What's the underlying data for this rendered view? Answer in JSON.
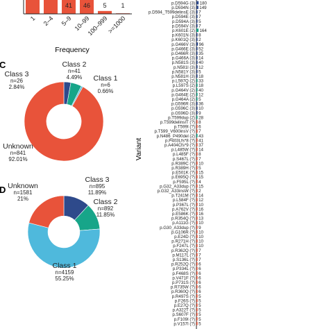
{
  "colors": {
    "unknown": "#e8533a",
    "class1_c": "#4fb9dc",
    "class2": "#17a589",
    "class3": "#2e4a8b",
    "bar": "#e8533a",
    "bar_blue": "#2e4a8b",
    "bar_teal": "#17a589"
  },
  "panel_letters": {
    "c": "C",
    "d": "D"
  },
  "chart_data": [
    {
      "id": "freq_bar",
      "type": "bar",
      "xlabel": "Frequency",
      "categories": [
        "1",
        "2–4",
        "5–9",
        "10–99",
        "100–999",
        ">=1000"
      ],
      "values": [
        null,
        null,
        41,
        46,
        5,
        1
      ],
      "data_labels": [
        "",
        "",
        "41",
        "46",
        "5",
        "1"
      ]
    },
    {
      "id": "donut_c",
      "type": "pie",
      "panel": "C",
      "slices": [
        {
          "name": "Unknown",
          "n_label": "n=841",
          "pct_label": "92.01%",
          "value": 92.01,
          "color": "#e8533a"
        },
        {
          "name": "Class 1",
          "n_label": "n=6",
          "pct_label": "0.66%",
          "value": 0.66,
          "color": "#4fb9dc"
        },
        {
          "name": "Class 2",
          "n_label": "n=41",
          "pct_label": "4.49%",
          "value": 4.49,
          "color": "#17a589"
        },
        {
          "name": "Class 3",
          "n_label": "n=26",
          "pct_label": "2.84%",
          "value": 2.84,
          "color": "#2e4a8b"
        }
      ]
    },
    {
      "id": "donut_d",
      "type": "pie",
      "panel": "D",
      "slices": [
        {
          "name": "Unknown",
          "n_label": "n=1581",
          "pct_label": "21%",
          "value": 21.0,
          "color": "#e8533a"
        },
        {
          "name": "Class 1",
          "n_label": "n=4159",
          "pct_label": "55.25%",
          "value": 55.25,
          "color": "#4fb9dc"
        },
        {
          "name": "Class 2",
          "n_label": "n=892",
          "pct_label": "11.85%",
          "value": 11.85,
          "color": "#17a589"
        },
        {
          "name": "Class 3",
          "n_label": "n=895",
          "pct_label": "11.89%",
          "value": 11.89,
          "color": "#2e4a8b"
        }
      ]
    },
    {
      "id": "variant_bars",
      "type": "bar",
      "orientation": "horizontal",
      "ylabel": "Variant",
      "rows": [
        {
          "label": "p.D594G (3)",
          "value": 180,
          "color": "#2e4a8b"
        },
        {
          "label": "p.D594N (3)",
          "value": 149,
          "color": "#2e4a8b"
        },
        {
          "label": "p.D594_T599delinsE (3)",
          "value": 7,
          "color": "#2e4a8b"
        },
        {
          "label": "p.D594E (3)",
          "value": 7,
          "color": "#2e4a8b"
        },
        {
          "label": "p.D594A (3)",
          "value": 5,
          "color": "#2e4a8b"
        },
        {
          "label": "p.D594V (3)",
          "value": 7,
          "color": "#2e4a8b"
        },
        {
          "label": "p.K601E (2)",
          "value": 164,
          "color": "#17a589"
        },
        {
          "label": "p.K601N (3)",
          "value": 8,
          "color": "#2e4a8b"
        },
        {
          "label": "p.K601Q (3)",
          "value": 2,
          "color": "#2e4a8b"
        },
        {
          "label": "p.G466V (3)",
          "value": 96,
          "color": "#2e4a8b"
        },
        {
          "label": "p.G466E (3)",
          "value": 52,
          "color": "#2e4a8b"
        },
        {
          "label": "p.G466R (3)",
          "value": 35,
          "color": "#2e4a8b"
        },
        {
          "label": "p.G466A (3)",
          "value": 14,
          "color": "#2e4a8b"
        },
        {
          "label": "p.N581S (3)",
          "value": 40,
          "color": "#2e4a8b"
        },
        {
          "label": "p.N581I (3)",
          "value": 12,
          "color": "#2e4a8b"
        },
        {
          "label": "p.N581Y (3)",
          "value": 5,
          "color": "#2e4a8b"
        },
        {
          "label": "p.N581H (3)",
          "value": 18,
          "color": "#2e4a8b"
        },
        {
          "label": "p.L597Q (2)",
          "value": 33,
          "color": "#17a589"
        },
        {
          "label": "p.L597S (2)",
          "value": 18,
          "color": "#17a589"
        },
        {
          "label": "p.G464V (2)",
          "value": 40,
          "color": "#17a589"
        },
        {
          "label": "p.G464E (2)",
          "value": 12,
          "color": "#17a589"
        },
        {
          "label": "p.G464A (2)",
          "value": 5,
          "color": "#17a589"
        },
        {
          "label": "p.G596R (3)",
          "value": 36,
          "color": "#2e4a8b"
        },
        {
          "label": "p.G596C (3)",
          "value": 10,
          "color": "#2e4a8b"
        },
        {
          "label": "p.G596D (3)",
          "value": 9,
          "color": "#2e4a8b"
        },
        {
          "label": "p.T599dup (2)",
          "value": 28,
          "color": "#17a589"
        },
        {
          "label": "p.T599delinsIT (?)",
          "value": 8,
          "color": "#e8533a"
        },
        {
          "label": "p.T599I (?)",
          "value": 6,
          "color": "#e8533a"
        },
        {
          "label": "p.T599_V600insV (?)",
          "value": 7,
          "color": "#e8533a"
        },
        {
          "label": "p.N486_P490del (2)",
          "value": 43,
          "color": "#17a589"
        },
        {
          "label": "p.P403Lfs*8 (?)",
          "value": 41,
          "color": "#e8533a"
        },
        {
          "label": "p.A404Cfs*9 (?)",
          "value": 37,
          "color": "#e8533a"
        },
        {
          "label": "p.L485W (?)",
          "value": 14,
          "color": "#e8533a"
        },
        {
          "label": "p.L485F (?)",
          "value": 8,
          "color": "#e8533a"
        },
        {
          "label": "p.S467L (?)",
          "value": 7,
          "color": "#e8533a"
        },
        {
          "label": "p.R389C (?)",
          "value": 10,
          "color": "#e8533a"
        },
        {
          "label": "p.R389H (?)",
          "value": 5,
          "color": "#e8533a"
        },
        {
          "label": "p.E501K (?)",
          "value": 15,
          "color": "#e8533a"
        },
        {
          "label": "p.E695Q (?)",
          "value": 15,
          "color": "#e8533a"
        },
        {
          "label": "p.F595L (?)",
          "value": 4,
          "color": "#e8533a"
        },
        {
          "label": "p.G32_A33dup (?)",
          "value": 15,
          "color": "#e8533a"
        },
        {
          "label": "p.G32_A33insW (?)",
          "value": 2,
          "color": "#e8533a"
        },
        {
          "label": "p.T241M (?)",
          "value": 14,
          "color": "#e8533a"
        },
        {
          "label": "p.L584F (?)",
          "value": 12,
          "color": "#e8533a"
        },
        {
          "label": "p.P367L (?)",
          "value": 10,
          "color": "#e8533a"
        },
        {
          "label": "p.A762V (?)",
          "value": 16,
          "color": "#e8533a"
        },
        {
          "label": "p.E586K (?)",
          "value": 16,
          "color": "#e8533a"
        },
        {
          "label": "p.R354Q (?)",
          "value": 13,
          "color": "#e8533a"
        },
        {
          "label": "p.A111G (?)",
          "value": 10,
          "color": "#e8533a"
        },
        {
          "label": "p.G30_A33dup (?)",
          "value": 9,
          "color": "#e8533a"
        },
        {
          "label": "p.G106R (?)",
          "value": 10,
          "color": "#e8533a"
        },
        {
          "label": "p.E24D (?)",
          "value": 10,
          "color": "#e8533a"
        },
        {
          "label": "p.R271H (?)",
          "value": 10,
          "color": "#e8533a"
        },
        {
          "label": "p.F247L (?)",
          "value": 10,
          "color": "#e8533a"
        },
        {
          "label": "p.R362Q (?)",
          "value": 7,
          "color": "#e8533a"
        },
        {
          "label": "p.M117L (?)",
          "value": 7,
          "color": "#e8533a"
        },
        {
          "label": "p.S136L (?)",
          "value": 7,
          "color": "#e8533a"
        },
        {
          "label": "p.R252Q (?)",
          "value": 6,
          "color": "#e8533a"
        },
        {
          "label": "p.P334L (?)",
          "value": 6,
          "color": "#e8533a"
        },
        {
          "label": "p.F468S (?)",
          "value": 6,
          "color": "#e8533a"
        },
        {
          "label": "p.V471F (?)",
          "value": 6,
          "color": "#e8533a"
        },
        {
          "label": "p.P731S (?)",
          "value": 6,
          "color": "#e8533a"
        },
        {
          "label": "p.R735W (?)",
          "value": 6,
          "color": "#e8533a"
        },
        {
          "label": "p.R360Q (?)",
          "value": 6,
          "color": "#e8533a"
        },
        {
          "label": "p.R497S (?)",
          "value": 5,
          "color": "#e8533a"
        },
        {
          "label": "p.F26S (?)",
          "value": 5,
          "color": "#e8533a"
        },
        {
          "label": "p.E27Q (?)",
          "value": 5,
          "color": "#e8533a"
        },
        {
          "label": "p.A322T (?)",
          "value": 5,
          "color": "#e8533a"
        },
        {
          "label": "p.S607F (?)",
          "value": 5,
          "color": "#e8533a"
        },
        {
          "label": "p.F109I (?)",
          "value": 5,
          "color": "#e8533a"
        },
        {
          "label": "p.V157I (?)",
          "value": 5,
          "color": "#e8533a"
        }
      ]
    }
  ]
}
